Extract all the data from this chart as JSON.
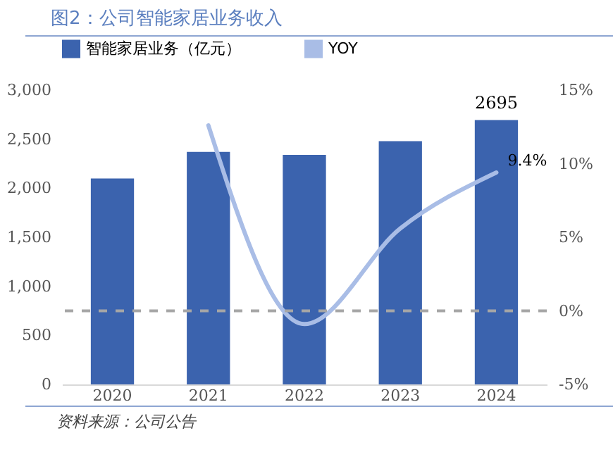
{
  "chart_data": {
    "type": "bar",
    "title": "图2：公司智能家居业务收入",
    "categories": [
      "2020",
      "2021",
      "2022",
      "2023",
      "2024"
    ],
    "series": [
      {
        "name": "智能家居业务（亿元）",
        "color": "#3b63ae",
        "values": [
          2100,
          2370,
          2340,
          2480,
          2695
        ],
        "value_labels": [
          null,
          null,
          null,
          null,
          "2695"
        ]
      },
      {
        "name": "YOY",
        "type": "line",
        "axis": "y2",
        "color": "#a9bde6",
        "values": [
          null,
          12.6,
          -0.9,
          5.6,
          9.4
        ],
        "value_labels": [
          null,
          null,
          null,
          null,
          "9.4%"
        ]
      }
    ],
    "ylim": [
      0,
      3000
    ],
    "yticks": [
      {
        "value": 0,
        "label": "0"
      },
      {
        "value": 500,
        "label": "500"
      },
      {
        "value": 1000,
        "label": "1,000"
      },
      {
        "value": 1500,
        "label": "1,500"
      },
      {
        "value": 2000,
        "label": "2,000"
      },
      {
        "value": 2500,
        "label": "2,500"
      },
      {
        "value": 3000,
        "label": "3,000"
      }
    ],
    "y2lim": [
      -5,
      15
    ],
    "y2ticks": [
      {
        "value": -5,
        "label": "-5%"
      },
      {
        "value": 0,
        "label": "0%"
      },
      {
        "value": 5,
        "label": "5%"
      },
      {
        "value": 10,
        "label": "10%"
      },
      {
        "value": 15,
        "label": "15%"
      }
    ],
    "ref_lines": [
      {
        "axis": "y2",
        "value": 0,
        "color": "#a6a6a6",
        "line_style": "dashed"
      }
    ],
    "legend": "top",
    "grid": false,
    "marker": "none",
    "annotations": [
      "资料来源：公司公告"
    ]
  }
}
